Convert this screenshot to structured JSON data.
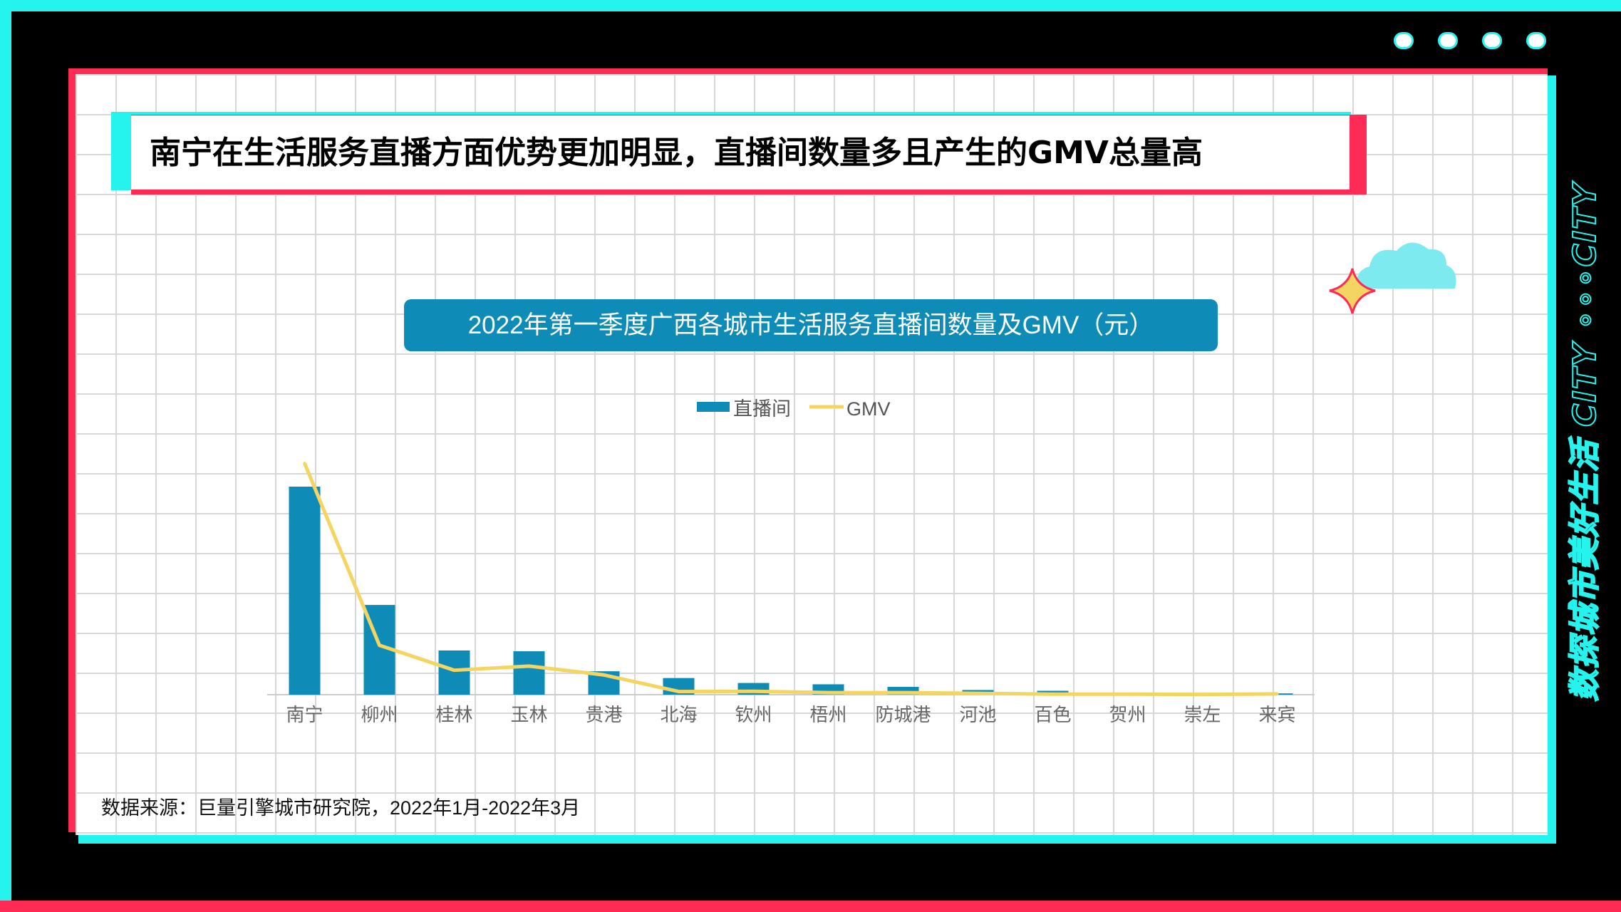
{
  "headline": "南宁在生活服务直播方面优势更加明显，直播间数量多且产生的GMV总量高",
  "source_note": "数据来源：巨量引擎城市研究院，2022年1月-2022年3月",
  "side_text": "数探城市美好生活 CITY ∘∘∘CITY",
  "colors": {
    "cyan": "#25f4ee",
    "red": "#fe2c55",
    "bar": "#0e8bb6",
    "line": "#f5d562"
  },
  "chart_data": {
    "type": "bar",
    "title": "2022年第一季度广西各城市生活服务直播间数量及GMV（元）",
    "legend_position": "top-center",
    "xlabel": "",
    "ylabel": "",
    "ylim": [
      0,
      100
    ],
    "grid": false,
    "categories": [
      "南宁",
      "柳州",
      "桂林",
      "玉林",
      "贵港",
      "北海",
      "钦州",
      "梧州",
      "防城港",
      "河池",
      "百色",
      "贺州",
      "崇左",
      "来宾"
    ],
    "series": [
      {
        "name": "直播间",
        "type": "bar",
        "values": [
          80,
          34.5,
          17,
          16.7,
          9,
          6.4,
          4.5,
          4,
          3,
          1.8,
          1.5,
          0.8,
          0.6,
          0.5
        ]
      },
      {
        "name": "GMV",
        "type": "line",
        "values": [
          89,
          19,
          9.4,
          11,
          7.6,
          1.2,
          1.3,
          0.8,
          0.8,
          0.5,
          0.2,
          0.2,
          0.1,
          0.3
        ]
      }
    ]
  }
}
